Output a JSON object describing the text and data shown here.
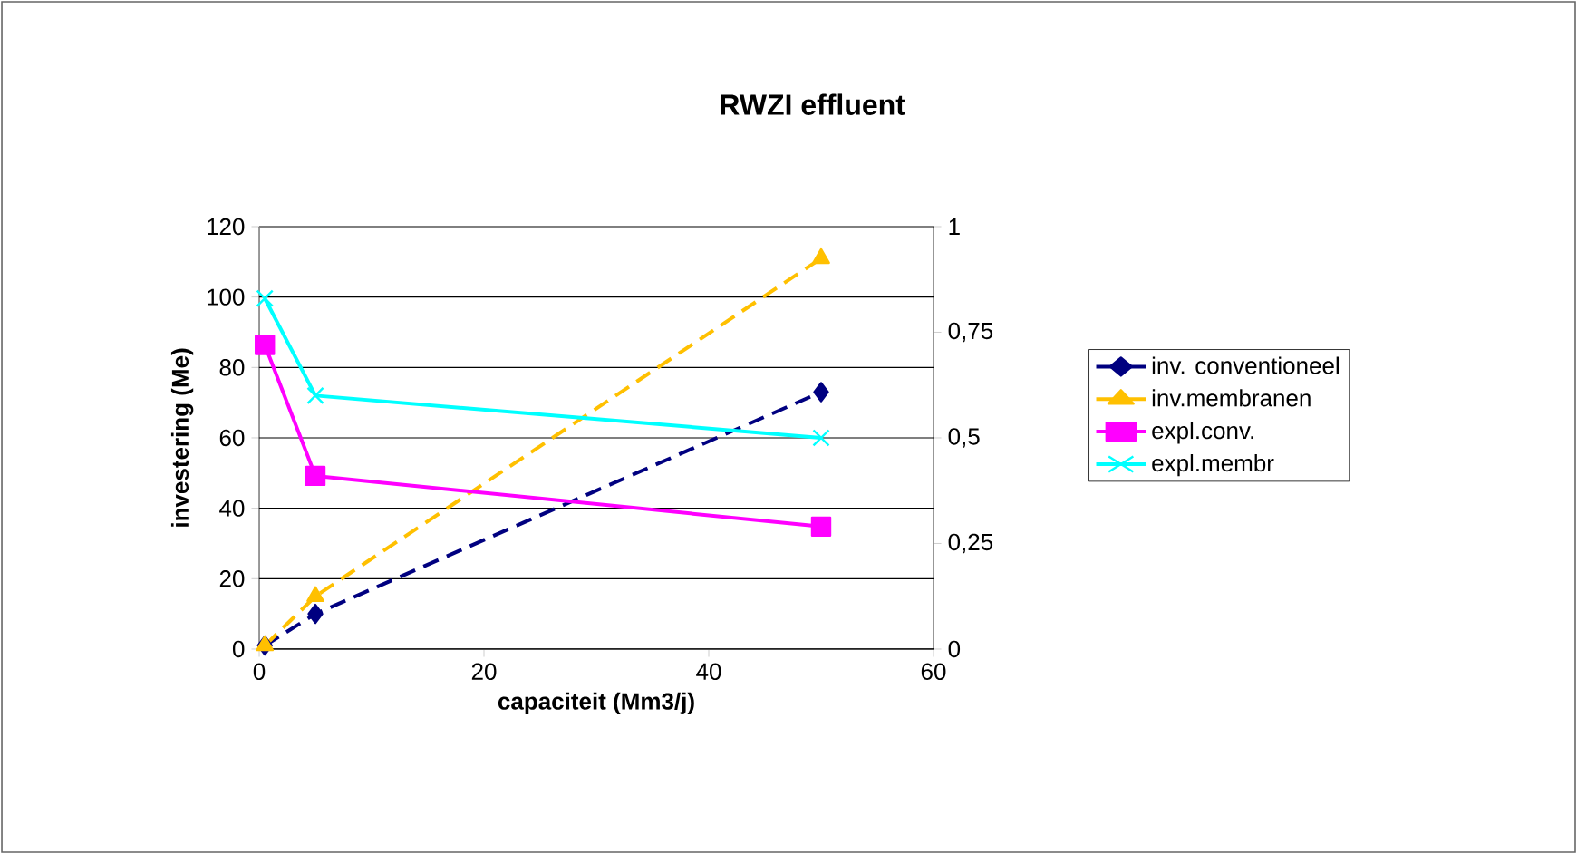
{
  "chart_data": {
    "type": "line",
    "title": "RWZI effluent",
    "xlabel": "capaciteit (Mm3/j)",
    "ylabel": "investering (Me)",
    "xlim": [
      0,
      60
    ],
    "xticks": [
      0,
      20,
      40,
      60
    ],
    "ylim": [
      0,
      120
    ],
    "yticks": [
      0,
      20,
      40,
      60,
      80,
      100,
      120
    ],
    "y2lim": [
      0,
      1
    ],
    "y2ticks": [
      0,
      {
        "value": 0.25,
        "label": "0,25"
      },
      {
        "value": 0.5,
        "label": "0,5"
      },
      {
        "value": 0.75,
        "label": "0,75"
      },
      1
    ],
    "grid": "y",
    "legend": "right",
    "x": [
      0.5,
      5,
      50
    ],
    "series": [
      {
        "name": "inv. conventioneel",
        "color": "#000080",
        "values": [
          1,
          10,
          73
        ],
        "marker": "diamond",
        "line_style": "dashed"
      },
      {
        "name": "inv.membranen",
        "color": "#ffc000",
        "values": [
          1,
          15,
          111
        ],
        "marker": "triangle",
        "line_style": "dashed"
      },
      {
        "name": "expl.conv.",
        "color": "#ff00ff",
        "values": [
          0.72,
          0.41,
          0.29
        ],
        "marker": "square",
        "line_style": "solid",
        "axis": "y2"
      },
      {
        "name": "expl.membr",
        "color": "#00ffff",
        "values": [
          0.83,
          0.6,
          0.5
        ],
        "marker": "cross",
        "line_style": "solid",
        "axis": "y2"
      }
    ]
  }
}
